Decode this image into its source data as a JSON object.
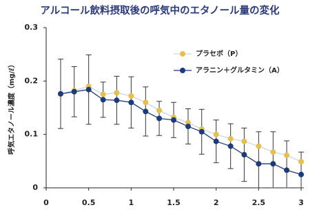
{
  "chart_data": {
    "type": "line",
    "title": "アルコール飲料摂取後の呼気中のエタノール量の変化",
    "y_label": "呼気エタノール濃度（mg/ℓ）",
    "x": [
      0.17,
      0.33,
      0.5,
      0.67,
      0.83,
      1.0,
      1.17,
      1.33,
      1.5,
      1.67,
      1.83,
      2.0,
      2.17,
      2.33,
      2.5,
      2.67,
      2.83,
      3.0
    ],
    "series": [
      {
        "name": "プラセボ（P）",
        "color": "#e6bf4c",
        "line_color": "#c9d6e4",
        "values": [
          0.176,
          0.182,
          0.19,
          0.175,
          0.178,
          0.172,
          0.16,
          0.145,
          0.132,
          0.122,
          0.11,
          0.1,
          0.092,
          0.087,
          0.078,
          0.067,
          0.061,
          0.049
        ]
      },
      {
        "name": "アラニン＋グルタミン（A）",
        "color": "#1d3a7c",
        "line_color": "#1d3a7c",
        "values": [
          0.176,
          0.18,
          0.184,
          0.165,
          0.164,
          0.16,
          0.143,
          0.13,
          0.127,
          0.115,
          0.105,
          0.087,
          0.078,
          0.062,
          0.045,
          0.045,
          0.033,
          0.025
        ],
        "errors": [
          0.065,
          0.047,
          0.065,
          0.033,
          0.045,
          0.048,
          0.046,
          0.032,
          0.033,
          0.033,
          0.042,
          0.04,
          0.042,
          0.05,
          0.06,
          0.06,
          0.055,
          0.042
        ]
      }
    ],
    "xlim": [
      0,
      3
    ],
    "xticks": [
      0,
      0.5,
      1,
      1.5,
      2,
      2.5,
      3
    ],
    "ylim": [
      0,
      0.3
    ],
    "yticks": [
      0,
      0.1,
      0.2,
      0.3
    ]
  }
}
